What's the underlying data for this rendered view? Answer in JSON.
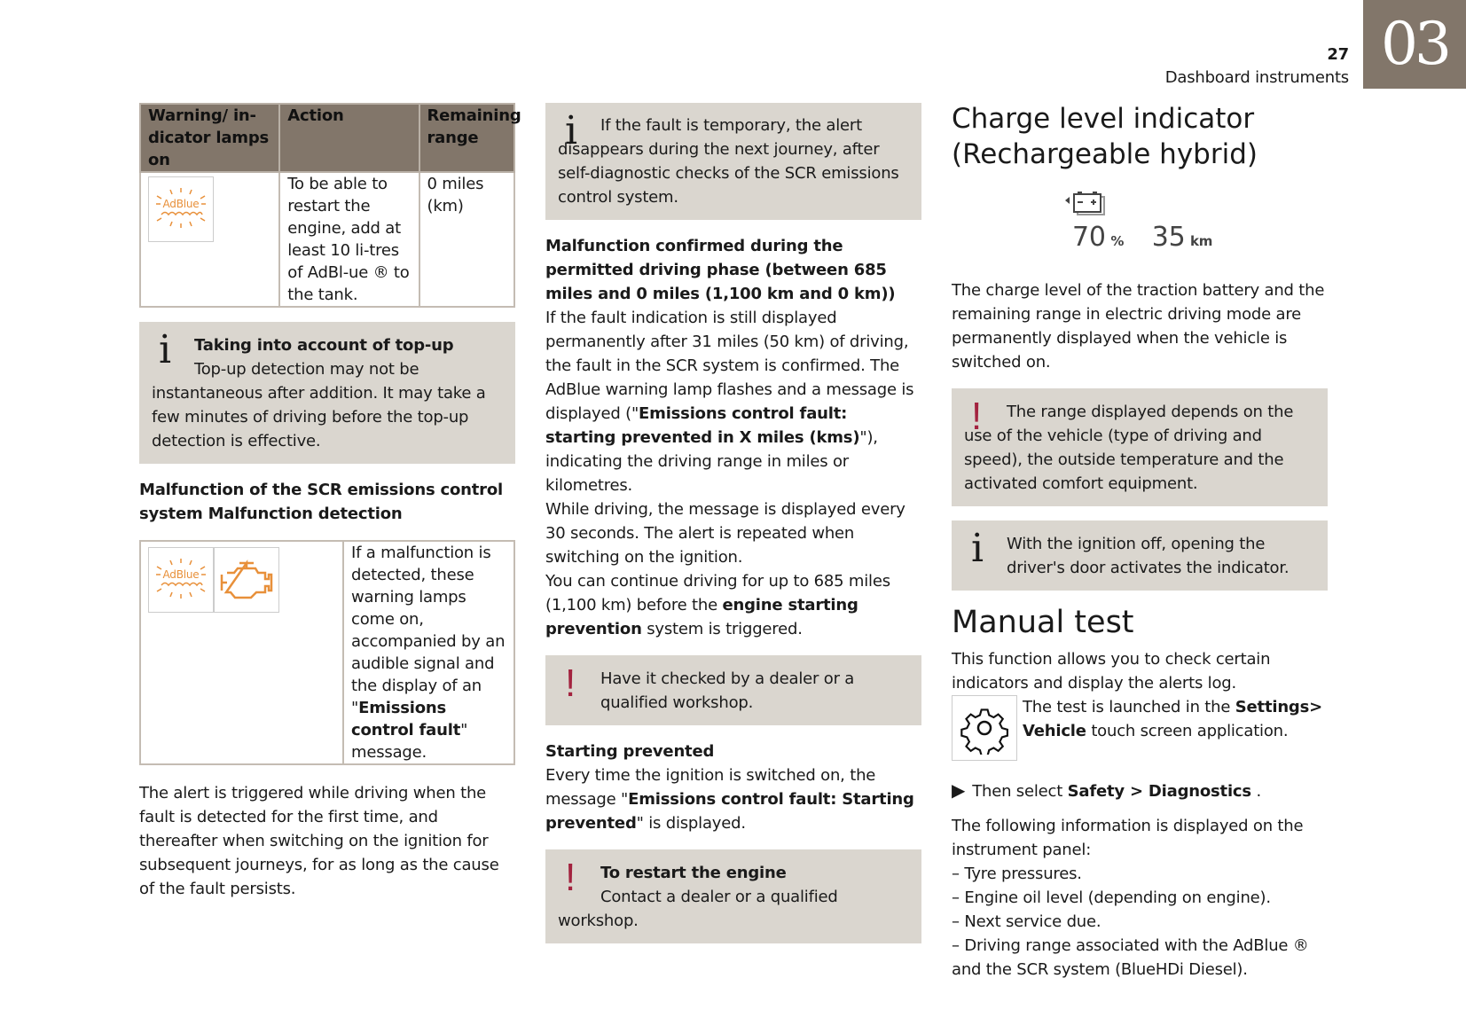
{
  "header": {
    "page_number": "27",
    "section": "Dashboard instruments",
    "chapter": "03"
  },
  "col1": {
    "table1": {
      "headers": [
        "Warning/ in-dicator lamps on",
        "Action",
        "Remaining range"
      ],
      "icon": "adblue-warning-icon",
      "icon_text": "AdBlue",
      "action": "To be able to restart the engine, add at least 10 li-tres of AdBl-ue ® to the tank.",
      "range": "0 miles (km)"
    },
    "info": {
      "title": "Taking into account of top-up",
      "text": "Top-up detection may not be instantaneous after addition. It may take a few minutes of driving before the top-up detection is effective."
    },
    "heading": "Malfunction of the SCR emissions control system Malfunction detection",
    "table2": {
      "icons": [
        "adblue-warning-icon",
        "engine-warning-icon"
      ],
      "icon_text": "AdBlue",
      "text": [
        {
          "t": "If a malfunction is detected, these warning lamps come on, accompanied by an audible signal and the display of an \""
        },
        {
          "t": "Emissions control fault",
          "b": true
        },
        {
          "t": "\" message."
        }
      ]
    },
    "para": "The alert is triggered while driving when the fault is detected for the first time, and thereafter when switching on the ignition for subsequent journeys, for as long as the cause of the fault persists."
  },
  "col2": {
    "info": "If the fault is temporary, the alert disappears during the next journey, after self-diagnostic checks of the SCR emissions control system.",
    "heading": "Malfunction confirmed during the permitted driving phase (between 685 miles and 0 miles (1,100 km and 0 km))",
    "body": [
      {
        "t": "If the fault indication is still displayed permanently after 31 miles (50 km) of driving, the fault in the SCR system is confirmed. The AdBlue warning lamp flashes and a message is displayed (\""
      },
      {
        "t": "Emissions control fault: starting prevented in X miles (kms)",
        "b": true
      },
      {
        "t": "\"), indicating the driving range in miles or kilometres."
      }
    ],
    "body2": "While driving, the message is displayed every 30 seconds. The alert is repeated when switching on the ignition.",
    "body3": [
      {
        "t": "You can continue driving for up to 685 miles (1,100 km) before the "
      },
      {
        "t": "engine starting prevention",
        "b": true
      },
      {
        "t": " system is triggered."
      }
    ],
    "warn": "Have it checked by a dealer or a qualified workshop.",
    "heading2": "Starting prevented",
    "body4": [
      {
        "t": "Every time the ignition is switched on, the message \""
      },
      {
        "t": "Emissions control fault: Starting prevented",
        "b": true
      },
      {
        "t": "\" is displayed."
      }
    ],
    "warn2": {
      "title": "To restart the engine",
      "text": "Contact a dealer or a qualified workshop."
    }
  },
  "col3": {
    "title": "Charge level indicator (Rechargeable hybrid)",
    "display": {
      "icon": "battery-icon",
      "charge": "70",
      "charge_unit": "%",
      "range": "35",
      "range_unit": "km"
    },
    "para": "The charge level of the traction battery and the remaining range in electric driving mode are permanently displayed when the vehicle is switched on.",
    "warn": "The range displayed depends on the use of the vehicle (type of driving and speed), the outside temperature and the activated comfort equipment.",
    "info": "With the ignition off, opening the driver's door activates the indicator.",
    "title2": "Manual test",
    "para2": "This function allows you to check certain indicators and display the alerts log.",
    "settings": [
      {
        "t": "The test is launched in the "
      },
      {
        "t": "Settings> Vehicle",
        "b": true
      },
      {
        "t": " touch screen application."
      }
    ],
    "step": [
      {
        "t": "Then select "
      },
      {
        "t": "Safety > Diagnostics",
        "b": true
      },
      {
        "t": " ."
      }
    ],
    "para3": "The following information is displayed on the instrument panel:",
    "list": [
      "– Tyre pressures.",
      "– Engine oil level (depending on engine).",
      "– Next service due.",
      "– Driving range associated with the AdBlue ® and the SCR system (BlueHDi Diesel)."
    ]
  },
  "colors": {
    "accent": "#82766a",
    "box": "#dad6cf",
    "warning": "#a3233f",
    "lamp": "#e8903a"
  }
}
